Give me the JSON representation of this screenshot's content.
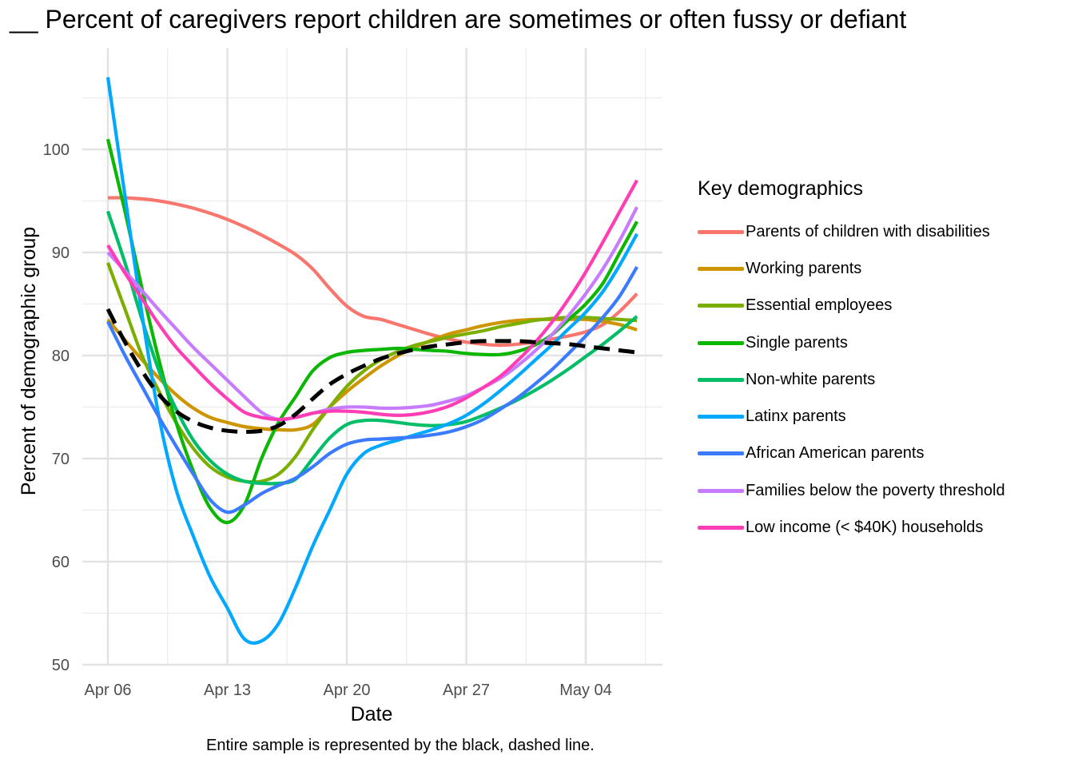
{
  "chart_data": {
    "type": "line",
    "title": "__ Percent of caregivers report  children are sometimes or often fussy or defiant",
    "xlabel": "Date",
    "ylabel": "Percent of demographic group",
    "caption": "Entire sample is represented by the black, dashed line.",
    "x_ticks": [
      "Apr 06",
      "Apr 13",
      "Apr 20",
      "Apr 27",
      "May 04"
    ],
    "y_ticks": [
      50,
      60,
      70,
      80,
      90,
      100
    ],
    "xlim": [
      "2020-04-06",
      "2020-05-07"
    ],
    "ylim": [
      50,
      107
    ],
    "grid": true,
    "legend_title": "Key demographics",
    "legend_position": "right",
    "x": [
      "2020-04-06",
      "2020-04-07",
      "2020-04-08",
      "2020-04-09",
      "2020-04-10",
      "2020-04-11",
      "2020-04-12",
      "2020-04-13",
      "2020-04-14",
      "2020-04-15",
      "2020-04-16",
      "2020-04-17",
      "2020-04-18",
      "2020-04-19",
      "2020-04-20",
      "2020-04-21",
      "2020-04-22",
      "2020-04-23",
      "2020-04-24",
      "2020-04-25",
      "2020-04-26",
      "2020-04-27",
      "2020-04-28",
      "2020-04-29",
      "2020-04-30",
      "2020-05-01",
      "2020-05-02",
      "2020-05-03",
      "2020-05-04",
      "2020-05-05",
      "2020-05-06",
      "2020-05-07"
    ],
    "series": [
      {
        "name": "Parents of children with disabilities",
        "color": "#F8766D",
        "values": [
          95.3,
          95.3,
          95.2,
          95.0,
          94.7,
          94.3,
          93.8,
          93.2,
          92.5,
          91.7,
          90.8,
          89.8,
          88.4,
          86.5,
          84.8,
          83.8,
          83.5,
          83.0,
          82.5,
          82.0,
          81.6,
          81.3,
          81.1,
          81.0,
          81.1,
          81.3,
          81.6,
          81.9,
          82.3,
          83.0,
          84.3,
          86.0
        ]
      },
      {
        "name": "Working parents",
        "color": "#CD9600",
        "values": [
          83.5,
          81.5,
          79.6,
          77.8,
          76.2,
          74.9,
          74.0,
          73.5,
          73.1,
          72.9,
          72.8,
          72.8,
          73.3,
          75.0,
          76.5,
          77.8,
          79.0,
          80.0,
          80.8,
          81.5,
          82.1,
          82.5,
          82.9,
          83.2,
          83.4,
          83.5,
          83.5,
          83.5,
          83.5,
          83.3,
          83.0,
          82.5
        ]
      },
      {
        "name": "Essential employees",
        "color": "#7CAE00",
        "values": [
          89.0,
          84.5,
          80.0,
          76.5,
          73.5,
          71.0,
          69.2,
          68.2,
          67.8,
          67.8,
          68.5,
          70.2,
          72.8,
          75.0,
          77.0,
          78.5,
          79.6,
          80.4,
          81.0,
          81.4,
          81.8,
          82.1,
          82.4,
          82.8,
          83.1,
          83.4,
          83.6,
          83.7,
          83.7,
          83.6,
          83.5,
          83.4
        ]
      },
      {
        "name": "Single parents",
        "color": "#0CB702",
        "values": [
          101.0,
          94.0,
          86.5,
          79.5,
          73.5,
          68.8,
          65.2,
          63.8,
          65.5,
          70.0,
          73.5,
          76.0,
          78.5,
          79.8,
          80.3,
          80.5,
          80.6,
          80.7,
          80.6,
          80.5,
          80.4,
          80.2,
          80.1,
          80.1,
          80.4,
          81.0,
          82.0,
          83.5,
          85.0,
          87.0,
          90.0,
          93.0
        ]
      },
      {
        "name": "Non-white parents",
        "color": "#00BE67",
        "values": [
          94.0,
          89.0,
          83.5,
          78.5,
          74.8,
          71.8,
          69.8,
          68.5,
          67.8,
          67.6,
          67.6,
          68.0,
          70.0,
          72.0,
          73.3,
          73.7,
          73.7,
          73.5,
          73.3,
          73.2,
          73.3,
          73.6,
          74.2,
          74.9,
          75.7,
          76.6,
          77.6,
          78.7,
          79.9,
          81.1,
          82.4,
          83.8
        ]
      },
      {
        "name": "Latinx parents",
        "color": "#00A9FF",
        "values": [
          107.0,
          95.5,
          84.0,
          74.0,
          67.0,
          62.5,
          58.5,
          55.5,
          52.5,
          52.3,
          54.0,
          57.5,
          61.5,
          65.0,
          68.5,
          70.5,
          71.3,
          71.8,
          72.3,
          72.8,
          73.4,
          74.2,
          75.3,
          76.6,
          78.0,
          79.5,
          81.0,
          82.6,
          84.2,
          86.2,
          88.8,
          91.8
        ]
      },
      {
        "name": "African American parents",
        "color": "#3A7BFF",
        "values": [
          83.3,
          80.0,
          77.0,
          74.0,
          71.2,
          68.5,
          66.0,
          64.8,
          65.5,
          66.6,
          67.4,
          68.1,
          69.2,
          70.5,
          71.4,
          71.8,
          71.9,
          72.0,
          72.1,
          72.3,
          72.6,
          73.1,
          73.8,
          74.8,
          75.9,
          77.2,
          78.6,
          80.2,
          81.9,
          83.7,
          85.8,
          88.6
        ]
      },
      {
        "name": "Families below the poverty threshold",
        "color": "#C77CFF",
        "values": [
          90.0,
          88.2,
          86.3,
          84.4,
          82.6,
          80.8,
          79.2,
          77.6,
          76.0,
          74.5,
          73.8,
          74.0,
          74.4,
          74.8,
          75.0,
          75.0,
          74.9,
          74.9,
          75.0,
          75.2,
          75.6,
          76.1,
          76.9,
          77.8,
          79.0,
          80.4,
          82.0,
          83.9,
          86.0,
          88.4,
          91.2,
          94.4
        ]
      },
      {
        "name": "Low income (< $40K) households",
        "color": "#FF3EB5",
        "values": [
          90.7,
          88.0,
          85.5,
          83.0,
          80.8,
          79.0,
          77.3,
          75.8,
          74.5,
          74.0,
          73.8,
          74.0,
          74.4,
          74.6,
          74.6,
          74.5,
          74.3,
          74.2,
          74.3,
          74.6,
          75.1,
          75.9,
          76.9,
          78.0,
          79.5,
          81.2,
          83.2,
          85.5,
          88.1,
          91.0,
          94.0,
          97.0
        ]
      },
      {
        "name": "",
        "color": "#000000",
        "dashed": true,
        "values": [
          84.5,
          81.3,
          78.5,
          76.2,
          74.6,
          73.6,
          73.0,
          72.7,
          72.6,
          72.7,
          73.2,
          74.3,
          75.8,
          77.2,
          78.2,
          79.0,
          79.7,
          80.2,
          80.6,
          80.9,
          81.1,
          81.3,
          81.4,
          81.4,
          81.4,
          81.3,
          81.2,
          81.1,
          80.9,
          80.7,
          80.5,
          80.3
        ]
      }
    ]
  }
}
